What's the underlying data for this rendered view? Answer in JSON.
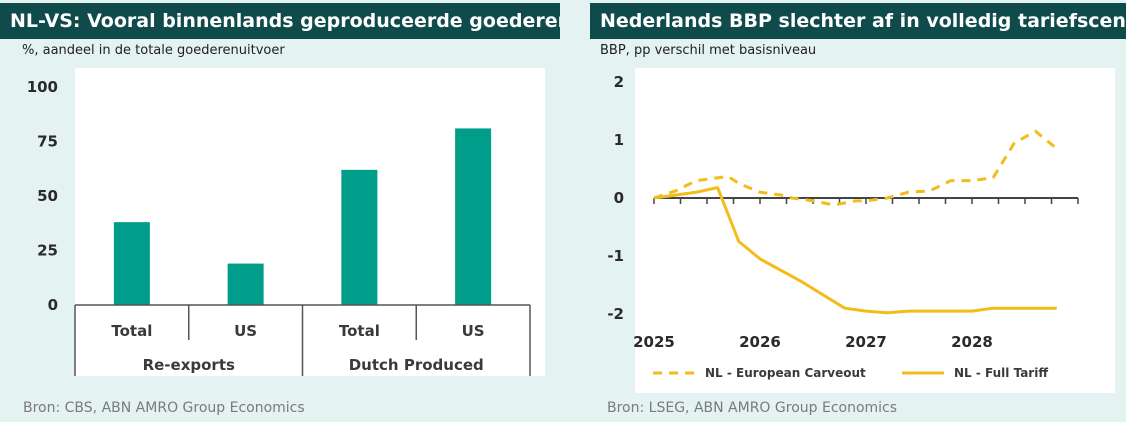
{
  "left_panel": {
    "title": "NL-VS:  Vooral binnenlands geproduceerde goederen",
    "subtitle": "%, aandeel in de totale goederenuitvoer",
    "source": "Bron: CBS, ABN AMRO Group Economics"
  },
  "right_panel": {
    "title": "Nederlands BBP slechter af in volledig tariefscenario",
    "subtitle": "BBP, pp verschil met basisniveau",
    "source": "Bron: LSEG, ABN AMRO Group Economics"
  },
  "colors": {
    "title_bar": "#0f4b4a",
    "bar": "#009e8a",
    "line": "#f2bc1a",
    "background": "#e4f3f1",
    "plot_area": "#ffffff"
  },
  "chart_data": [
    {
      "type": "bar",
      "title": "NL-VS:  Vooral binnenlands geproduceerde goederen",
      "subtitle": "%, aandeel in de totale goederenuitvoer",
      "categories": [
        "Total",
        "US",
        "Total",
        "US"
      ],
      "groups": [
        {
          "label": "Re-exports",
          "categories": [
            "Total",
            "US"
          ]
        },
        {
          "label": "Dutch Produced",
          "categories": [
            "Total",
            "US"
          ]
        }
      ],
      "values": [
        38,
        19,
        62,
        81
      ],
      "ylim": [
        0,
        100
      ],
      "yticks": [
        0,
        25,
        50,
        75,
        100
      ],
      "grid": false
    },
    {
      "type": "line",
      "title": "Nederlands BBP slechter af in volledig tariefscenario",
      "subtitle": "BBP, pp verschil met basisniveau",
      "xlim": [
        2025.0,
        2029.0
      ],
      "xticks": [
        2025,
        2026,
        2027,
        2028
      ],
      "ylim": [
        -2,
        2
      ],
      "yticks": [
        -2,
        -1,
        0,
        1,
        2
      ],
      "legend": "bottom",
      "grid": false,
      "series": [
        {
          "name": "NL - European Carveout",
          "style": "dashed",
          "x": [
            2025.0,
            2025.2,
            2025.4,
            2025.7,
            2025.8,
            2026.0,
            2026.2,
            2026.3,
            2026.5,
            2026.7,
            2026.9,
            2027.0,
            2027.2,
            2027.4,
            2027.6,
            2027.8,
            2028.0,
            2028.2,
            2028.4,
            2028.6,
            2028.8
          ],
          "y": [
            0.0,
            0.12,
            0.3,
            0.37,
            0.25,
            0.1,
            0.05,
            0.0,
            -0.05,
            -0.12,
            -0.05,
            -0.05,
            0.0,
            0.1,
            0.12,
            0.3,
            0.3,
            0.35,
            0.95,
            1.15,
            0.85
          ]
        },
        {
          "name": "NL - Full Tariff",
          "style": "solid",
          "x": [
            2025.0,
            2025.2,
            2025.4,
            2025.6,
            2025.8,
            2026.0,
            2026.4,
            2026.8,
            2027.0,
            2027.2,
            2027.4,
            2027.6,
            2027.8,
            2028.0,
            2028.2,
            2028.4,
            2028.6,
            2028.8
          ],
          "y": [
            0.0,
            0.05,
            0.1,
            0.18,
            -0.75,
            -1.05,
            -1.45,
            -1.9,
            -1.95,
            -1.98,
            -1.95,
            -1.95,
            -1.95,
            -1.95,
            -1.9,
            -1.9,
            -1.9,
            -1.9
          ]
        }
      ]
    }
  ]
}
